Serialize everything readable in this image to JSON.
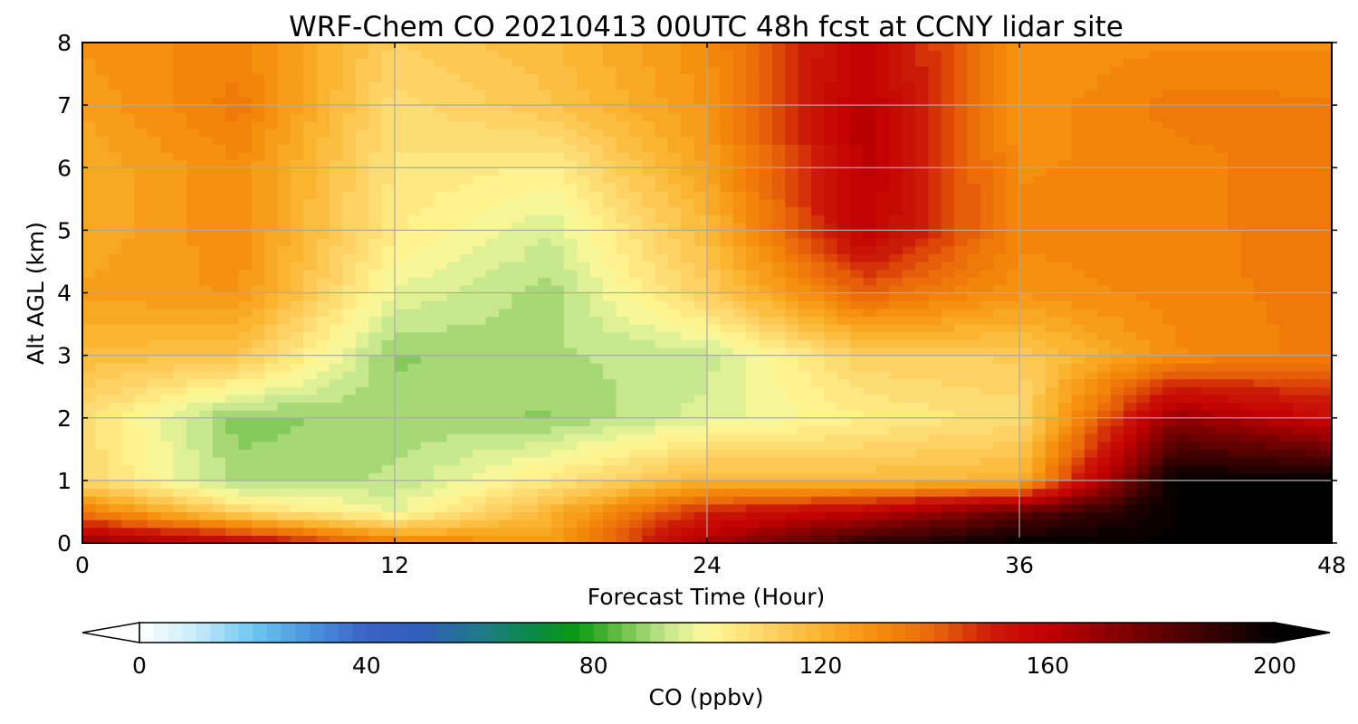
{
  "chart_data": {
    "type": "heatmap",
    "title": "WRF-Chem CO  20210413 00UTC 48h fcst at CCNY lidar site",
    "xlabel": "Forecast Time (Hour)",
    "ylabel": "Alt AGL (km)",
    "xlim": [
      0,
      48
    ],
    "ylim": [
      0,
      8
    ],
    "xticks": [
      "0",
      "12",
      "24",
      "36",
      "48"
    ],
    "yticks": [
      "0",
      "1",
      "2",
      "3",
      "4",
      "5",
      "6",
      "7",
      "8"
    ],
    "grid": true,
    "x": [
      0,
      6,
      12,
      18,
      24,
      30,
      36,
      42,
      48
    ],
    "y": [
      0,
      0.5,
      1,
      2,
      3,
      4,
      5,
      6,
      7,
      8
    ],
    "values": [
      [
        170,
        160,
        135,
        125,
        165,
        190,
        200,
        200,
        200
      ],
      [
        135,
        110,
        97,
        120,
        150,
        160,
        180,
        200,
        200
      ],
      [
        110,
        90,
        92,
        105,
        120,
        118,
        120,
        200,
        200
      ],
      [
        108,
        87,
        90,
        88,
        96,
        103,
        108,
        170,
        155
      ],
      [
        118,
        115,
        88,
        91,
        93,
        112,
        113,
        130,
        135
      ],
      [
        125,
        128,
        97,
        90,
        112,
        140,
        128,
        132,
        135
      ],
      [
        122,
        130,
        104,
        95,
        118,
        160,
        132,
        132,
        136
      ],
      [
        122,
        130,
        106,
        103,
        125,
        162,
        130,
        132,
        136
      ],
      [
        125,
        135,
        108,
        115,
        128,
        162,
        128,
        135,
        134
      ],
      [
        128,
        132,
        112,
        118,
        130,
        160,
        128,
        130,
        130
      ]
    ],
    "colorbar": {
      "label": "CO  (ppbv)",
      "min": 0,
      "max": 200,
      "ticks": [
        "0",
        "40",
        "80",
        "120",
        "160",
        "200"
      ],
      "extend": "both",
      "colors": [
        [
          0,
          "#ffffff"
        ],
        [
          10,
          "#c8ecfa"
        ],
        [
          20,
          "#6cc6f2"
        ],
        [
          30,
          "#4a95dc"
        ],
        [
          40,
          "#3a62c4"
        ],
        [
          50,
          "#2f60b8"
        ],
        [
          60,
          "#1f7a8a"
        ],
        [
          70,
          "#0a8a40"
        ],
        [
          77,
          "#0a9a10"
        ],
        [
          85,
          "#6cc048"
        ],
        [
          93,
          "#c8e890"
        ],
        [
          100,
          "#fffa9a"
        ],
        [
          110,
          "#fed56a"
        ],
        [
          120,
          "#fbb430"
        ],
        [
          130,
          "#f48d0a"
        ],
        [
          140,
          "#e9660a"
        ],
        [
          150,
          "#cc1a08"
        ],
        [
          160,
          "#c20000"
        ],
        [
          170,
          "#900000"
        ],
        [
          180,
          "#600000"
        ],
        [
          190,
          "#300000"
        ],
        [
          200,
          "#000000"
        ]
      ]
    }
  }
}
